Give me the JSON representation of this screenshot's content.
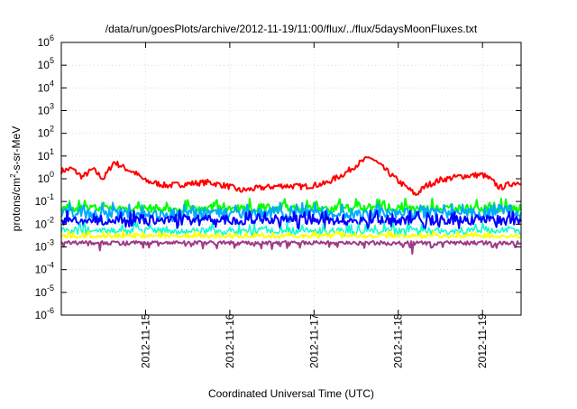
{
  "chart_data": {
    "type": "line",
    "title": "/data/run/goesPlots/archive/2012-11-19/11:00/flux/../flux/5daysMoonFluxes.txt",
    "xlabel": "Coordinated Universal Time (UTC)",
    "ylabel": "protons/cm2-s-sr-MeV",
    "ylabel_base": "protons/cm",
    "ylabel_sup": "2",
    "ylabel_rest": "-s-sr-MeV",
    "yscale": "log",
    "ylim": [
      1e-06,
      1000000.0
    ],
    "xlim": [
      "2012-11-14 00:00",
      "2012-11-19 11:00"
    ],
    "grid": true,
    "x_ticks": [
      "2012-11-15",
      "2012-11-16",
      "2012-11-17",
      "2012-11-18",
      "2012-11-19"
    ],
    "y_ticks": [
      {
        "base": "10",
        "exp": "6"
      },
      {
        "base": "10",
        "exp": "5"
      },
      {
        "base": "10",
        "exp": "4"
      },
      {
        "base": "10",
        "exp": "3"
      },
      {
        "base": "10",
        "exp": "2"
      },
      {
        "base": "10",
        "exp": "1"
      },
      {
        "base": "10",
        "exp": "0"
      },
      {
        "base": "10",
        "exp": "-1"
      },
      {
        "base": "10",
        "exp": "-2"
      },
      {
        "base": "10",
        "exp": "-3"
      },
      {
        "base": "10",
        "exp": "-4"
      },
      {
        "base": "10",
        "exp": "-5"
      },
      {
        "base": "10",
        "exp": "-6"
      }
    ],
    "series": [
      {
        "color": "#ff0000",
        "line_width": 2,
        "mode": "anchors",
        "anchors": [
          [
            "2012-11-14 00:00",
            2.2
          ],
          [
            "2012-11-14 03:00",
            2.8
          ],
          [
            "2012-11-14 06:00",
            1.2
          ],
          [
            "2012-11-14 09:00",
            2.6
          ],
          [
            "2012-11-14 12:00",
            1.0
          ],
          [
            "2012-11-14 15:00",
            5.5
          ],
          [
            "2012-11-14 18:00",
            3.0
          ],
          [
            "2012-11-14 21:00",
            1.8
          ],
          [
            "2012-11-15 00:00",
            0.8
          ],
          [
            "2012-11-15 06:00",
            0.5
          ],
          [
            "2012-11-15 12:00",
            0.6
          ],
          [
            "2012-11-15 18:00",
            0.7
          ],
          [
            "2012-11-16 00:00",
            0.45
          ],
          [
            "2012-11-16 03:00",
            0.3
          ],
          [
            "2012-11-16 09:00",
            0.4
          ],
          [
            "2012-11-16 15:00",
            0.5
          ],
          [
            "2012-11-16 21:00",
            0.45
          ],
          [
            "2012-11-17 03:00",
            0.6
          ],
          [
            "2012-11-17 09:00",
            1.8
          ],
          [
            "2012-11-17 12:00",
            4.0
          ],
          [
            "2012-11-17 16:00",
            9.0
          ],
          [
            "2012-11-17 18:00",
            5.0
          ],
          [
            "2012-11-17 21:00",
            2.0
          ],
          [
            "2012-11-18 00:00",
            0.8
          ],
          [
            "2012-11-18 03:00",
            0.35
          ],
          [
            "2012-11-18 05:00",
            0.2
          ],
          [
            "2012-11-18 08:00",
            0.5
          ],
          [
            "2012-11-18 12:00",
            0.9
          ],
          [
            "2012-11-18 18:00",
            1.3
          ],
          [
            "2012-11-19 00:00",
            1.5
          ],
          [
            "2012-11-19 02:00",
            1.0
          ],
          [
            "2012-11-19 05:00",
            0.4
          ],
          [
            "2012-11-19 08:00",
            0.6
          ],
          [
            "2012-11-19 11:00",
            0.75
          ]
        ],
        "noise": 0.13
      },
      {
        "color": "#00ff00",
        "line_width": 2,
        "mode": "spiky",
        "base": 0.05,
        "spike_max": 0.14,
        "dip_min": 0.03
      },
      {
        "color": "#00aaff",
        "line_width": 2,
        "mode": "spiky",
        "base": 0.03,
        "spike_max": 0.09,
        "dip_min": 0.012
      },
      {
        "color": "#0000ff",
        "line_width": 2,
        "mode": "spiky",
        "base": 0.015,
        "spike_max": 0.04,
        "dip_min": 0.006
      },
      {
        "color": "#00ffcc",
        "line_width": 1.5,
        "mode": "spiky",
        "base": 0.005,
        "spike_max": 0.012,
        "dip_min": 0.003
      },
      {
        "color": "#ffff00",
        "line_width": 2,
        "mode": "spiky",
        "base": 0.003,
        "spike_max": 0.005,
        "dip_min": 0.0025
      },
      {
        "color": "#9e3a8a",
        "line_width": 2,
        "mode": "spiky",
        "base": 0.0015,
        "spike_max": 0.0018,
        "dip_min": 0.0008,
        "dips": [
          [
            "2012-11-14 11:00",
            0.0007
          ],
          [
            "2012-11-16 12:00",
            0.0008
          ],
          [
            "2012-11-18 04:00",
            0.0005
          ],
          [
            "2012-11-19 04:00",
            0.0009
          ]
        ]
      }
    ]
  }
}
